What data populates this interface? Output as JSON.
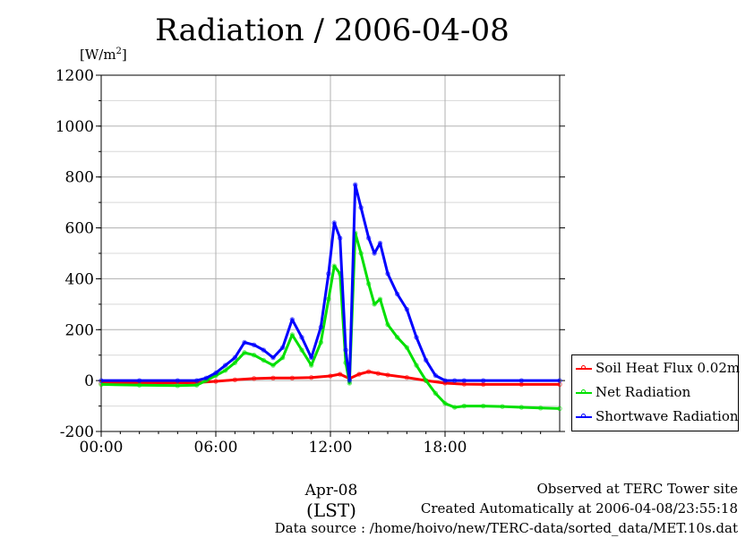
{
  "page": {
    "title": "Radiation / 2006-04-08",
    "ylabel_unit": "[W/m",
    "ylabel_sup": "2",
    "ylabel_close": "]",
    "xlabel_date": "Apr-08",
    "xlabel_tz": "(LST)",
    "footer": [
      "Observed at TERC Tower site",
      "Created Automatically at 2006-04-08/23:55:18",
      "Data source : /home/hoivo/new/TERC-data/sorted_data/MET.10s.dat"
    ]
  },
  "chart_data": {
    "type": "line",
    "title": "Radiation / 2006-04-08",
    "xlabel": "Apr-08 (LST)",
    "ylabel": "[W/m2]",
    "x_unit": "hours",
    "xlim": [
      0,
      24
    ],
    "ylim": [
      -200,
      1200
    ],
    "x_ticks": [
      0,
      6,
      12,
      18
    ],
    "x_tick_labels": [
      "00:00",
      "06:00",
      "12:00",
      "18:00"
    ],
    "y_ticks": [
      -200,
      0,
      200,
      400,
      600,
      800,
      1000,
      1200
    ],
    "grid": true,
    "legend_position": "bottom-right, outside plot",
    "series": [
      {
        "name": "Soil Heat Flux 0.02m",
        "color": "#ff0000",
        "x": [
          0,
          3,
          5,
          6,
          7,
          8,
          9,
          10,
          11,
          12,
          12.5,
          13,
          13.5,
          14,
          14.5,
          15,
          16,
          17,
          18,
          19,
          20,
          22,
          24
        ],
        "y": [
          -10,
          -10,
          -8,
          -3,
          3,
          8,
          10,
          10,
          12,
          18,
          25,
          8,
          25,
          35,
          28,
          22,
          12,
          0,
          -10,
          -14,
          -15,
          -15,
          -15
        ]
      },
      {
        "name": "Net Radiation",
        "color": "#00e000",
        "x": [
          0,
          2,
          4,
          5,
          5.5,
          6,
          6.5,
          7,
          7.5,
          8,
          8.5,
          9,
          9.5,
          10,
          10.5,
          11,
          11.5,
          11.9,
          12.2,
          12.5,
          12.8,
          13,
          13.3,
          13.6,
          14,
          14.3,
          14.6,
          15,
          15.5,
          16,
          16.5,
          17,
          17.5,
          18,
          18.5,
          19,
          20,
          21,
          22,
          23,
          24
        ],
        "y": [
          -15,
          -18,
          -20,
          -18,
          0,
          20,
          40,
          70,
          110,
          100,
          80,
          60,
          90,
          180,
          120,
          60,
          150,
          320,
          450,
          420,
          70,
          -10,
          580,
          500,
          380,
          300,
          320,
          220,
          170,
          130,
          60,
          0,
          -50,
          -90,
          -105,
          -100,
          -100,
          -102,
          -105,
          -108,
          -110
        ]
      },
      {
        "name": "Shortwave Radiation",
        "color": "#0000ff",
        "x": [
          0,
          2,
          4,
          5,
          5.5,
          6,
          6.5,
          7,
          7.5,
          8,
          8.5,
          9,
          9.5,
          10,
          10.5,
          11,
          11.5,
          11.9,
          12.2,
          12.5,
          12.8,
          13,
          13.3,
          13.6,
          14,
          14.3,
          14.6,
          15,
          15.5,
          16,
          16.5,
          17,
          17.5,
          18,
          18.5,
          19,
          20,
          22,
          24
        ],
        "y": [
          0,
          0,
          0,
          0,
          10,
          30,
          60,
          90,
          150,
          140,
          120,
          90,
          130,
          240,
          170,
          90,
          210,
          420,
          620,
          560,
          120,
          0,
          770,
          680,
          560,
          500,
          540,
          420,
          340,
          280,
          170,
          80,
          20,
          0,
          0,
          0,
          0,
          0,
          0
        ]
      }
    ]
  }
}
